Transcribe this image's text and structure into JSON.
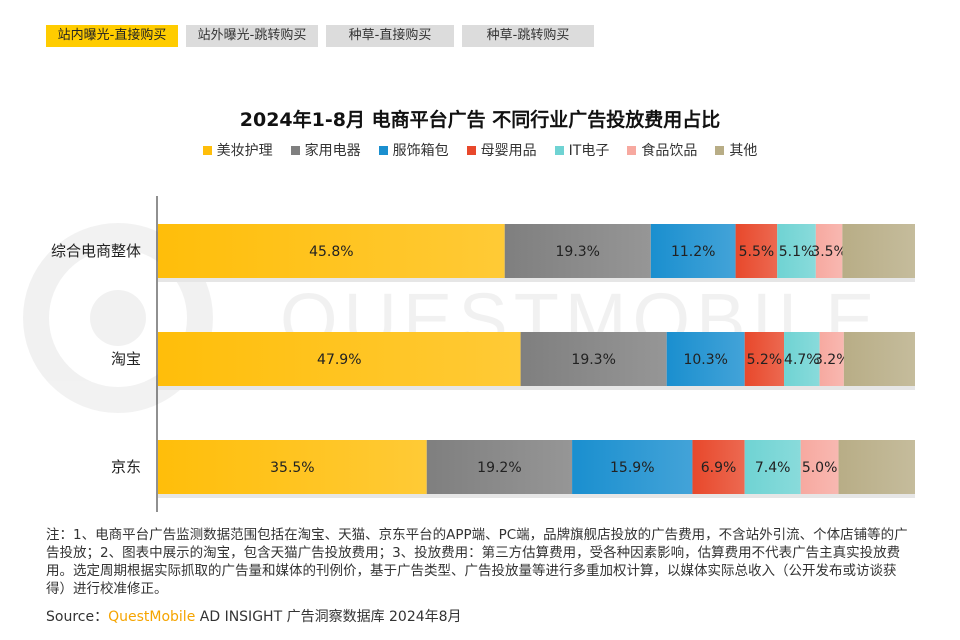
{
  "tabs": [
    {
      "label": "站内曝光-直接购买",
      "active": true
    },
    {
      "label": "站外曝光-跳转购买",
      "active": false
    },
    {
      "label": "种草-直接购买",
      "active": false
    },
    {
      "label": "种草-跳转购买",
      "active": false
    }
  ],
  "watermark": "QUESTMOBILE",
  "chart_data": {
    "type": "bar",
    "orientation": "horizontal-stacked-100",
    "title": "2024年1-8月 电商平台广告 不同行业广告投放费用占比",
    "categories": [
      "综合电商整体",
      "淘宝",
      "京东"
    ],
    "series": [
      {
        "name": "美妆护理",
        "color": "#FFBE0A",
        "values": [
          45.8,
          47.9,
          35.5
        ]
      },
      {
        "name": "家用电器",
        "color": "#7F7F7F",
        "values": [
          19.3,
          19.3,
          19.2
        ]
      },
      {
        "name": "服饰箱包",
        "color": "#1A8FCF",
        "values": [
          11.2,
          10.3,
          15.9
        ]
      },
      {
        "name": "母婴用品",
        "color": "#E8482B",
        "values": [
          5.5,
          5.2,
          6.9
        ]
      },
      {
        "name": "IT电子",
        "color": "#6FD3D3",
        "values": [
          5.1,
          4.7,
          7.4
        ]
      },
      {
        "name": "食品饮品",
        "color": "#F7A9A0",
        "values": [
          3.5,
          3.2,
          5.0
        ]
      },
      {
        "name": "其他",
        "color": "#B8AD86",
        "values": [
          9.6,
          9.4,
          10.1
        ]
      }
    ],
    "labels": [
      [
        "45.8%",
        "19.3%",
        "11.2%",
        "5.5%",
        "5.1%",
        "3.5%",
        ""
      ],
      [
        "47.9%",
        "19.3%",
        "10.3%",
        "5.2%",
        "4.7%",
        "3.2%",
        ""
      ],
      [
        "35.5%",
        "19.2%",
        "15.9%",
        "6.9%",
        "7.4%",
        "5.0%",
        ""
      ]
    ],
    "legend_position": "top"
  },
  "notes": "注：1、电商平台广告监测数据范围包括在淘宝、天猫、京东平台的APP端、PC端，品牌旗舰店投放的广告费用，不含站外引流、个体店铺等的广告投放；2、图表中展示的淘宝，包含天猫广告投放费用；3、投放费用：第三方估算费用，受各种因素影响，估算费用不代表广告主真实投放费用。选定周期根据实际抓取的广告量和媒体的刊例价，基于广告类型、广告投放量等进行多重加权计算，以媒体实际总收入（公开发布或访谈获得）进行校准修正。",
  "source": {
    "prefix": "Source：",
    "brand": "QuestMobile",
    "rest": " AD INSIGHT 广告洞察数据库 2024年8月"
  }
}
